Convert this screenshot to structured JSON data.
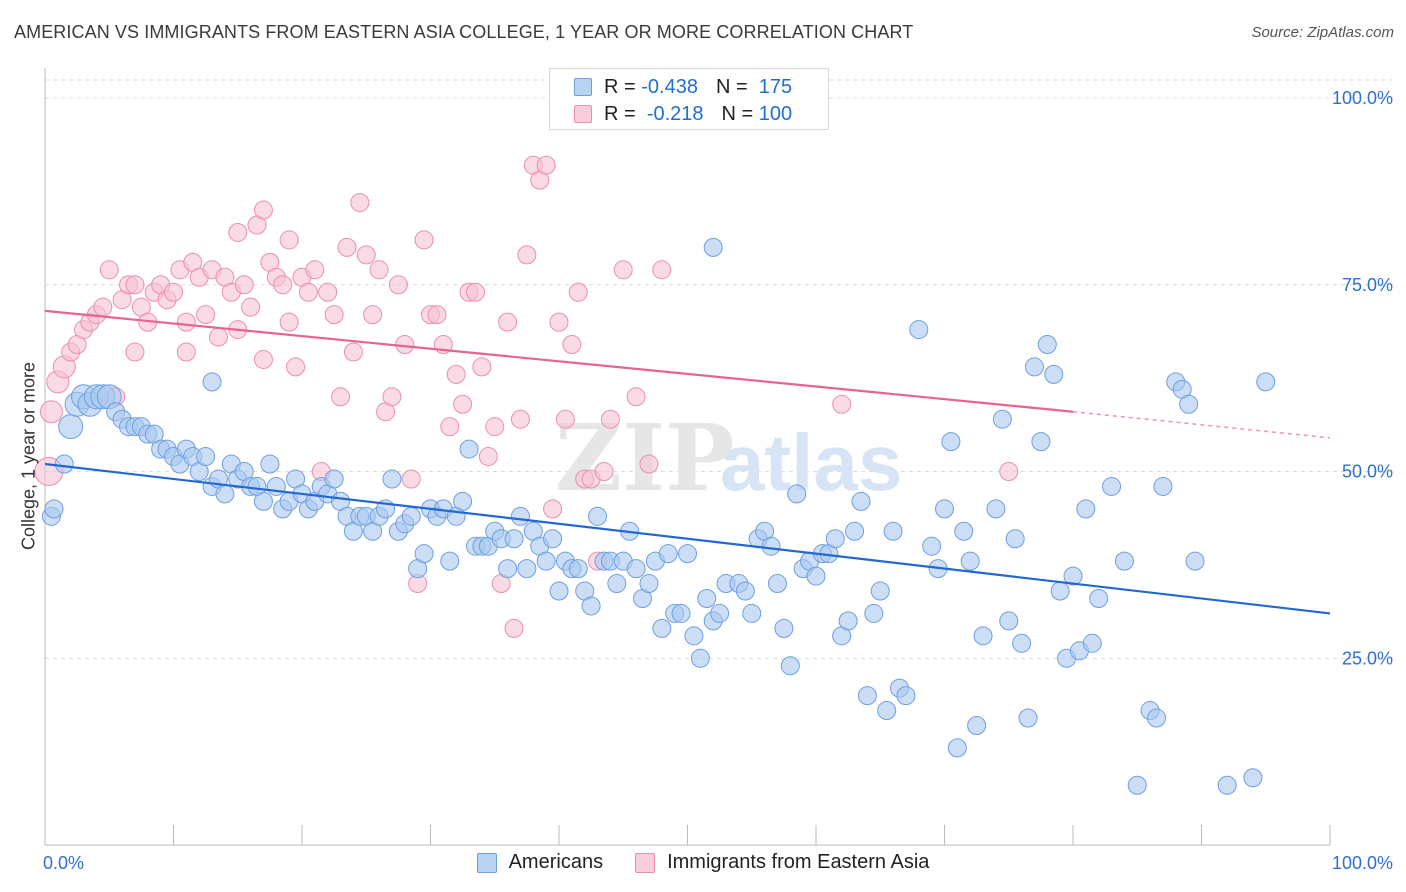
{
  "title": "AMERICAN VS IMMIGRANTS FROM EASTERN ASIA COLLEGE, 1 YEAR OR MORE CORRELATION CHART",
  "source": "Source: ZipAtlas.com",
  "watermark": {
    "zip": "ZIP",
    "atlas": "atlas"
  },
  "colors": {
    "blue_fill": "#a9c8f0",
    "blue_stroke": "#6e9fe0",
    "blue_line": "#2268d0",
    "pink_fill": "#f6c1d2",
    "pink_stroke": "#ea8fae",
    "pink_line": "#e8648f",
    "axis_text": "#2f6fcf",
    "grid": "#dcdcdc"
  },
  "legend": {
    "r_label": "R =",
    "n_label": "N =",
    "rows": [
      {
        "r": "-0.438",
        "n": "175"
      },
      {
        "r": "-0.218",
        "n": "100"
      }
    ]
  },
  "chart_data": {
    "type": "scatter",
    "title": "AMERICAN VS IMMIGRANTS FROM EASTERN ASIA COLLEGE, 1 YEAR OR MORE CORRELATION CHART",
    "ylabel": "College, 1 year or more",
    "xlabel": "",
    "xlim": [
      0,
      100
    ],
    "ylim": [
      0,
      100
    ],
    "x_tick_labels": [
      "0.0%",
      "100.0%"
    ],
    "y_tick_labels": [
      "100.0%",
      "75.0%",
      "50.0%",
      "25.0%"
    ],
    "y_ticks": [
      100,
      75,
      50,
      25
    ],
    "grid": "horizontal dashed",
    "legend_position": "bottom-center",
    "series": [
      {
        "name": "Americans",
        "r": -0.438,
        "n": 175,
        "trend": {
          "x": [
            0,
            100
          ],
          "y": [
            51,
            31
          ]
        },
        "points": [
          [
            0.5,
            44
          ],
          [
            0.7,
            45
          ],
          [
            1.5,
            51
          ],
          [
            2,
            56
          ],
          [
            2.5,
            59
          ],
          [
            3,
            60
          ],
          [
            3.5,
            59
          ],
          [
            4,
            60
          ],
          [
            4.5,
            60
          ],
          [
            5,
            60
          ],
          [
            5.5,
            58
          ],
          [
            6,
            57
          ],
          [
            6.5,
            56
          ],
          [
            7,
            56
          ],
          [
            7.5,
            56
          ],
          [
            8,
            55
          ],
          [
            8.5,
            55
          ],
          [
            9,
            53
          ],
          [
            9.5,
            53
          ],
          [
            10,
            52
          ],
          [
            10.5,
            51
          ],
          [
            11,
            53
          ],
          [
            11.5,
            52
          ],
          [
            12,
            50
          ],
          [
            12.5,
            52
          ],
          [
            13,
            48
          ],
          [
            13.5,
            49
          ],
          [
            14,
            47
          ],
          [
            14.5,
            51
          ],
          [
            15,
            49
          ],
          [
            15.5,
            50
          ],
          [
            16,
            48
          ],
          [
            16.5,
            48
          ],
          [
            17,
            46
          ],
          [
            17.5,
            51
          ],
          [
            18,
            48
          ],
          [
            18.5,
            45
          ],
          [
            19,
            46
          ],
          [
            19.5,
            49
          ],
          [
            20,
            47
          ],
          [
            20.5,
            45
          ],
          [
            21,
            46
          ],
          [
            21.5,
            48
          ],
          [
            22,
            47
          ],
          [
            22.5,
            49
          ],
          [
            23,
            46
          ],
          [
            23.5,
            44
          ],
          [
            24,
            42
          ],
          [
            24.5,
            44
          ],
          [
            25,
            44
          ],
          [
            25.5,
            42
          ],
          [
            26,
            44
          ],
          [
            26.5,
            45
          ],
          [
            27,
            49
          ],
          [
            27.5,
            42
          ],
          [
            28,
            43
          ],
          [
            28.5,
            44
          ],
          [
            29,
            37
          ],
          [
            29.5,
            39
          ],
          [
            30,
            45
          ],
          [
            30.5,
            44
          ],
          [
            31,
            45
          ],
          [
            31.5,
            38
          ],
          [
            32,
            44
          ],
          [
            32.5,
            46
          ],
          [
            33,
            53
          ],
          [
            33.5,
            40
          ],
          [
            34,
            40
          ],
          [
            34.5,
            40
          ],
          [
            35,
            42
          ],
          [
            35.5,
            41
          ],
          [
            36,
            37
          ],
          [
            36.5,
            41
          ],
          [
            37,
            44
          ],
          [
            37.5,
            37
          ],
          [
            38,
            42
          ],
          [
            38.5,
            40
          ],
          [
            39,
            38
          ],
          [
            39.5,
            41
          ],
          [
            40,
            34
          ],
          [
            40.5,
            38
          ],
          [
            41,
            37
          ],
          [
            41.5,
            37
          ],
          [
            42,
            34
          ],
          [
            42.5,
            32
          ],
          [
            43,
            44
          ],
          [
            43.5,
            38
          ],
          [
            44,
            38
          ],
          [
            44.5,
            35
          ],
          [
            45,
            38
          ],
          [
            45.5,
            42
          ],
          [
            46,
            37
          ],
          [
            46.5,
            33
          ],
          [
            47,
            35
          ],
          [
            47.5,
            38
          ],
          [
            48,
            29
          ],
          [
            48.5,
            39
          ],
          [
            49,
            31
          ],
          [
            49.5,
            31
          ],
          [
            50,
            39
          ],
          [
            50.5,
            28
          ],
          [
            51,
            25
          ],
          [
            51.5,
            33
          ],
          [
            52,
            30
          ],
          [
            52.5,
            31
          ],
          [
            53,
            35
          ],
          [
            54,
            35
          ],
          [
            54.5,
            34
          ],
          [
            55,
            31
          ],
          [
            55.5,
            41
          ],
          [
            56,
            42
          ],
          [
            56.5,
            40
          ],
          [
            57,
            35
          ],
          [
            57.5,
            29
          ],
          [
            58,
            24
          ],
          [
            58.5,
            47
          ],
          [
            59,
            37
          ],
          [
            59.5,
            38
          ],
          [
            60,
            36
          ],
          [
            60.5,
            39
          ],
          [
            61,
            39
          ],
          [
            61.5,
            41
          ],
          [
            62,
            28
          ],
          [
            62.5,
            30
          ],
          [
            63,
            42
          ],
          [
            63.5,
            46
          ],
          [
            64,
            20
          ],
          [
            64.5,
            31
          ],
          [
            65,
            34
          ],
          [
            65.5,
            18
          ],
          [
            66,
            42
          ],
          [
            66.5,
            21
          ],
          [
            67,
            20
          ],
          [
            68,
            69
          ],
          [
            69,
            40
          ],
          [
            69.5,
            37
          ],
          [
            70,
            45
          ],
          [
            70.5,
            54
          ],
          [
            71,
            13
          ],
          [
            71.5,
            42
          ],
          [
            72,
            38
          ],
          [
            72.5,
            16
          ],
          [
            73,
            28
          ],
          [
            74,
            45
          ],
          [
            74.5,
            57
          ],
          [
            75,
            30
          ],
          [
            75.5,
            41
          ],
          [
            76,
            27
          ],
          [
            76.5,
            17
          ],
          [
            77,
            64
          ],
          [
            77.5,
            54
          ],
          [
            78,
            67
          ],
          [
            78.5,
            63
          ],
          [
            79,
            34
          ],
          [
            79.5,
            25
          ],
          [
            80,
            36
          ],
          [
            80.5,
            26
          ],
          [
            81,
            45
          ],
          [
            81.5,
            27
          ],
          [
            82,
            33
          ],
          [
            83,
            48
          ],
          [
            84,
            38
          ],
          [
            85,
            8
          ],
          [
            86,
            18
          ],
          [
            86.5,
            17
          ],
          [
            87,
            48
          ],
          [
            88,
            62
          ],
          [
            88.5,
            61
          ],
          [
            89,
            59
          ],
          [
            89.5,
            38
          ],
          [
            92,
            8
          ],
          [
            94,
            9
          ],
          [
            95,
            62
          ],
          [
            52,
            80
          ],
          [
            13,
            62
          ]
        ]
      },
      {
        "name": "Immigrants from Eastern Asia",
        "r": -0.218,
        "n": 100,
        "trend": {
          "x": [
            0,
            80
          ],
          "y": [
            71.5,
            58
          ]
        },
        "trend_dashed": {
          "x": [
            80,
            100
          ],
          "y": [
            58,
            54.5
          ]
        },
        "points": [
          [
            0.3,
            50
          ],
          [
            0.5,
            58
          ],
          [
            1,
            62
          ],
          [
            1.5,
            64
          ],
          [
            2,
            66
          ],
          [
            2.5,
            67
          ],
          [
            3,
            69
          ],
          [
            3.5,
            70
          ],
          [
            4,
            71
          ],
          [
            4.5,
            72
          ],
          [
            5,
            77
          ],
          [
            5.5,
            60
          ],
          [
            6,
            73
          ],
          [
            6.5,
            75
          ],
          [
            7,
            75
          ],
          [
            7.5,
            72
          ],
          [
            8,
            70
          ],
          [
            8.5,
            74
          ],
          [
            9,
            75
          ],
          [
            9.5,
            73
          ],
          [
            10,
            74
          ],
          [
            10.5,
            77
          ],
          [
            11,
            66
          ],
          [
            11.5,
            78
          ],
          [
            12,
            76
          ],
          [
            12.5,
            71
          ],
          [
            13,
            77
          ],
          [
            13.5,
            68
          ],
          [
            14,
            76
          ],
          [
            14.5,
            74
          ],
          [
            15,
            82
          ],
          [
            15.5,
            75
          ],
          [
            16,
            72
          ],
          [
            16.5,
            83
          ],
          [
            17,
            85
          ],
          [
            17.5,
            78
          ],
          [
            18,
            76
          ],
          [
            18.5,
            75
          ],
          [
            19,
            81
          ],
          [
            19.5,
            64
          ],
          [
            20,
            76
          ],
          [
            20.5,
            74
          ],
          [
            21,
            77
          ],
          [
            21.5,
            50
          ],
          [
            22,
            74
          ],
          [
            22.5,
            71
          ],
          [
            23,
            60
          ],
          [
            23.5,
            80
          ],
          [
            24,
            66
          ],
          [
            24.5,
            86
          ],
          [
            25,
            79
          ],
          [
            25.5,
            71
          ],
          [
            26,
            77
          ],
          [
            26.5,
            58
          ],
          [
            27,
            60
          ],
          [
            27.5,
            75
          ],
          [
            28,
            67
          ],
          [
            28.5,
            49
          ],
          [
            29,
            35
          ],
          [
            29.5,
            81
          ],
          [
            30,
            71
          ],
          [
            30.5,
            71
          ],
          [
            31,
            67
          ],
          [
            31.5,
            56
          ],
          [
            32,
            63
          ],
          [
            32.5,
            59
          ],
          [
            33,
            74
          ],
          [
            33.5,
            74
          ],
          [
            34,
            64
          ],
          [
            34.5,
            52
          ],
          [
            35,
            56
          ],
          [
            35.5,
            35
          ],
          [
            36,
            70
          ],
          [
            36.5,
            29
          ],
          [
            37,
            57
          ],
          [
            37.5,
            79
          ],
          [
            38,
            91
          ],
          [
            38.5,
            89
          ],
          [
            39,
            91
          ],
          [
            39.5,
            45
          ],
          [
            40,
            70
          ],
          [
            40.5,
            57
          ],
          [
            41,
            67
          ],
          [
            41.5,
            74
          ],
          [
            42,
            49
          ],
          [
            42.5,
            49
          ],
          [
            43,
            38
          ],
          [
            43.5,
            50
          ],
          [
            44,
            57
          ],
          [
            45,
            77
          ],
          [
            46,
            60
          ],
          [
            47,
            51
          ],
          [
            48,
            77
          ],
          [
            62,
            59
          ],
          [
            75,
            50
          ],
          [
            19,
            70
          ],
          [
            17,
            65
          ],
          [
            15,
            69
          ],
          [
            11,
            70
          ],
          [
            7,
            66
          ]
        ]
      }
    ]
  },
  "bottom_legend": {
    "items": [
      {
        "label": "Americans"
      },
      {
        "label": "Immigrants from Eastern Asia"
      }
    ]
  }
}
